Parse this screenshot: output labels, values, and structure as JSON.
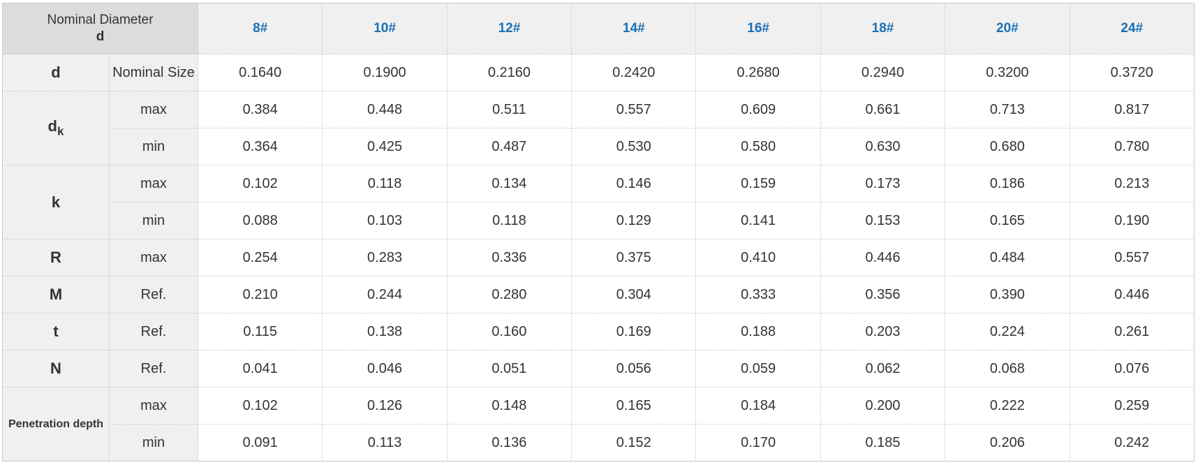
{
  "header": {
    "title": "Nominal Diameter",
    "symbol": "d",
    "sizes": [
      "8#",
      "10#",
      "12#",
      "14#",
      "16#",
      "18#",
      "20#",
      "24#"
    ]
  },
  "groups": [
    {
      "label": "d",
      "rows": [
        {
          "type": "Nominal Size",
          "values": [
            "0.1640",
            "0.1900",
            "0.2160",
            "0.2420",
            "0.2680",
            "0.2940",
            "0.3200",
            "0.3720"
          ]
        }
      ]
    },
    {
      "label": "d",
      "subscript": "k",
      "rows": [
        {
          "type": "max",
          "values": [
            "0.384",
            "0.448",
            "0.511",
            "0.557",
            "0.609",
            "0.661",
            "0.713",
            "0.817"
          ]
        },
        {
          "type": "min",
          "values": [
            "0.364",
            "0.425",
            "0.487",
            "0.530",
            "0.580",
            "0.630",
            "0.680",
            "0.780"
          ]
        }
      ]
    },
    {
      "label": "k",
      "rows": [
        {
          "type": "max",
          "values": [
            "0.102",
            "0.118",
            "0.134",
            "0.146",
            "0.159",
            "0.173",
            "0.186",
            "0.213"
          ]
        },
        {
          "type": "min",
          "values": [
            "0.088",
            "0.103",
            "0.118",
            "0.129",
            "0.141",
            "0.153",
            "0.165",
            "0.190"
          ]
        }
      ]
    },
    {
      "label": "R",
      "rows": [
        {
          "type": "max",
          "values": [
            "0.254",
            "0.283",
            "0.336",
            "0.375",
            "0.410",
            "0.446",
            "0.484",
            "0.557"
          ]
        }
      ]
    },
    {
      "label": "M",
      "rows": [
        {
          "type": "Ref.",
          "values": [
            "0.210",
            "0.244",
            "0.280",
            "0.304",
            "0.333",
            "0.356",
            "0.390",
            "0.446"
          ]
        }
      ]
    },
    {
      "label": "t",
      "rows": [
        {
          "type": "Ref.",
          "values": [
            "0.115",
            "0.138",
            "0.160",
            "0.169",
            "0.188",
            "0.203",
            "0.224",
            "0.261"
          ]
        }
      ]
    },
    {
      "label": "N",
      "rows": [
        {
          "type": "Ref.",
          "values": [
            "0.041",
            "0.046",
            "0.051",
            "0.056",
            "0.059",
            "0.062",
            "0.068",
            "0.076"
          ]
        }
      ]
    },
    {
      "label": "Penetration depth",
      "small": true,
      "rows": [
        {
          "type": "max",
          "values": [
            "0.102",
            "0.126",
            "0.148",
            "0.165",
            "0.184",
            "0.200",
            "0.222",
            "0.259"
          ]
        },
        {
          "type": "min",
          "values": [
            "0.091",
            "0.113",
            "0.136",
            "0.152",
            "0.170",
            "0.185",
            "0.206",
            "0.242"
          ]
        }
      ]
    }
  ]
}
